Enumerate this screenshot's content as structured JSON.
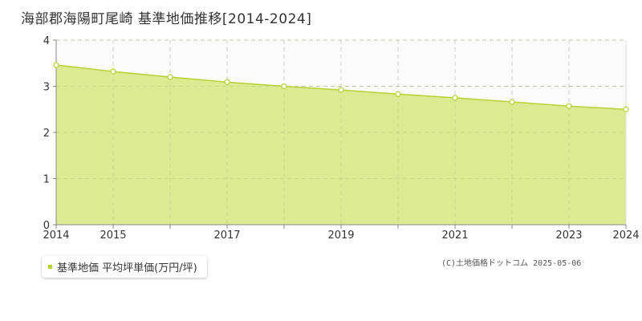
{
  "header": {
    "title": "海部郡海陽町尾崎 基準地価推移[2014-2024]"
  },
  "legend": {
    "label": "基準地価 平均坪単価(万円/坪)"
  },
  "credit": "(C)土地価格ドットコム 2025-05-06",
  "colors": {
    "fill": "#dceb92",
    "line": "#b5d334",
    "grid": "#cccccc",
    "axis": "#888888"
  },
  "chart_data": {
    "type": "area",
    "x": [
      2014,
      2015,
      2016,
      2017,
      2018,
      2019,
      2020,
      2021,
      2022,
      2023,
      2024
    ],
    "series": [
      {
        "name": "基準地価 平均坪単価(万円/坪)",
        "values": [
          3.46,
          3.32,
          3.2,
          3.09,
          3.0,
          2.92,
          2.83,
          2.75,
          2.66,
          2.57,
          2.5
        ]
      }
    ],
    "xtick_labels": [
      "2014",
      "2015",
      "2017",
      "2019",
      "2021",
      "2023",
      "2024"
    ],
    "ytick_labels": [
      "0",
      "1",
      "2",
      "3",
      "4"
    ],
    "ylim": [
      0,
      4
    ],
    "xlim": [
      2014,
      2024
    ],
    "grid": true
  }
}
